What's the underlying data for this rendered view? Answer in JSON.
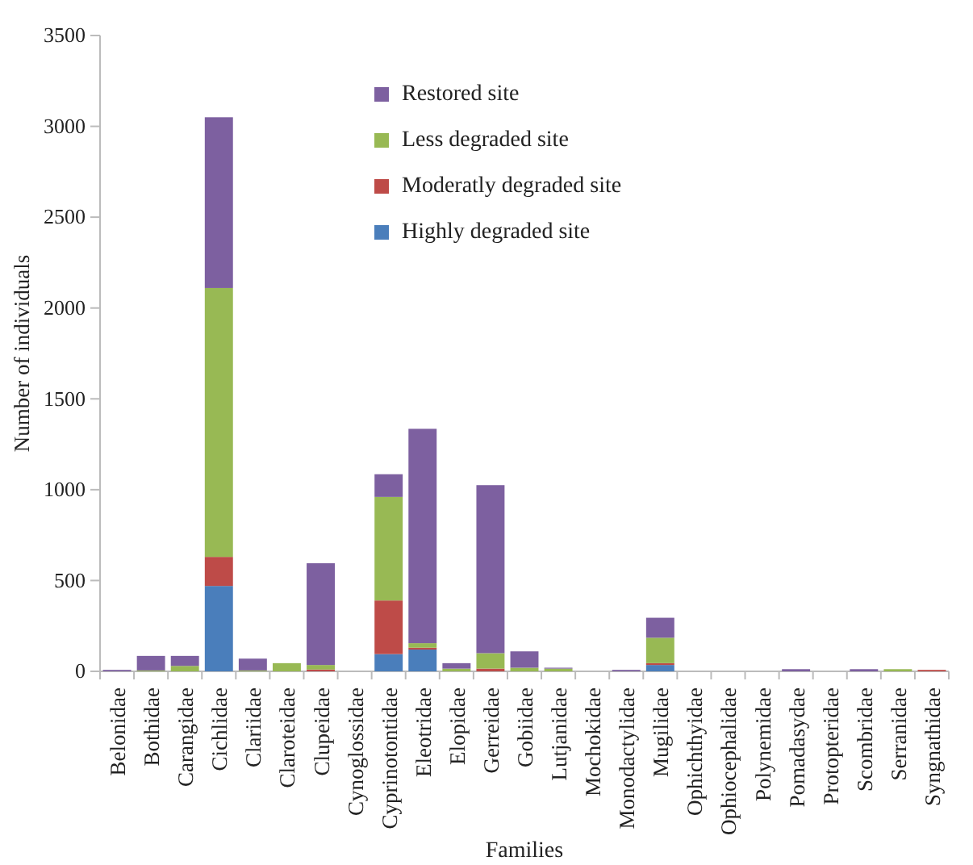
{
  "chart_data": {
    "type": "bar",
    "stacked": true,
    "xlabel": "Families",
    "ylabel": "Number of individuals",
    "categories": [
      "Belonidae",
      "Bothidae",
      "Carangidae",
      "Cichlidae",
      "Clariidae",
      "Claroteidae",
      "Clupeidae",
      "Cynoglossidae",
      "Cyprinotontidae",
      "Eleotridae",
      "Elopidae",
      "Gerreidae",
      "Gobiidae",
      "Lutjanidae",
      "Mochokidae",
      "Monodactylidae",
      "Mugilidae",
      "Ophichthyidae",
      "Ophiocephalidae",
      "Polynemidae",
      "Pomadasydae",
      "Protopteridae",
      "Scombridae",
      "Serranidae",
      "Syngnathidae"
    ],
    "series": [
      {
        "name": "Highly degraded site",
        "color": "#4a7ebb",
        "values": [
          0,
          0,
          0,
          470,
          0,
          0,
          0,
          0,
          95,
          120,
          0,
          0,
          0,
          0,
          0,
          0,
          35,
          0,
          0,
          0,
          0,
          0,
          0,
          0,
          0
        ]
      },
      {
        "name": "Moderatly degraded site",
        "color": "#be4b48",
        "values": [
          0,
          0,
          0,
          160,
          0,
          0,
          10,
          0,
          295,
          10,
          0,
          15,
          0,
          0,
          0,
          0,
          10,
          0,
          0,
          0,
          0,
          0,
          0,
          0,
          8
        ]
      },
      {
        "name": "Less degraded site",
        "color": "#98b954",
        "values": [
          0,
          5,
          30,
          1480,
          5,
          45,
          25,
          0,
          570,
          25,
          15,
          85,
          20,
          15,
          0,
          0,
          140,
          0,
          0,
          0,
          0,
          0,
          0,
          12,
          0
        ]
      },
      {
        "name": "Restored site",
        "color": "#7d60a0",
        "values": [
          8,
          80,
          55,
          940,
          65,
          0,
          560,
          0,
          125,
          1180,
          30,
          925,
          90,
          5,
          0,
          8,
          110,
          0,
          0,
          0,
          12,
          0,
          12,
          0,
          0
        ]
      }
    ],
    "ylim": [
      0,
      3500
    ],
    "yticks": [
      0,
      500,
      1000,
      1500,
      2000,
      2500,
      3000,
      3500
    ],
    "grid": false,
    "legend": "top"
  }
}
